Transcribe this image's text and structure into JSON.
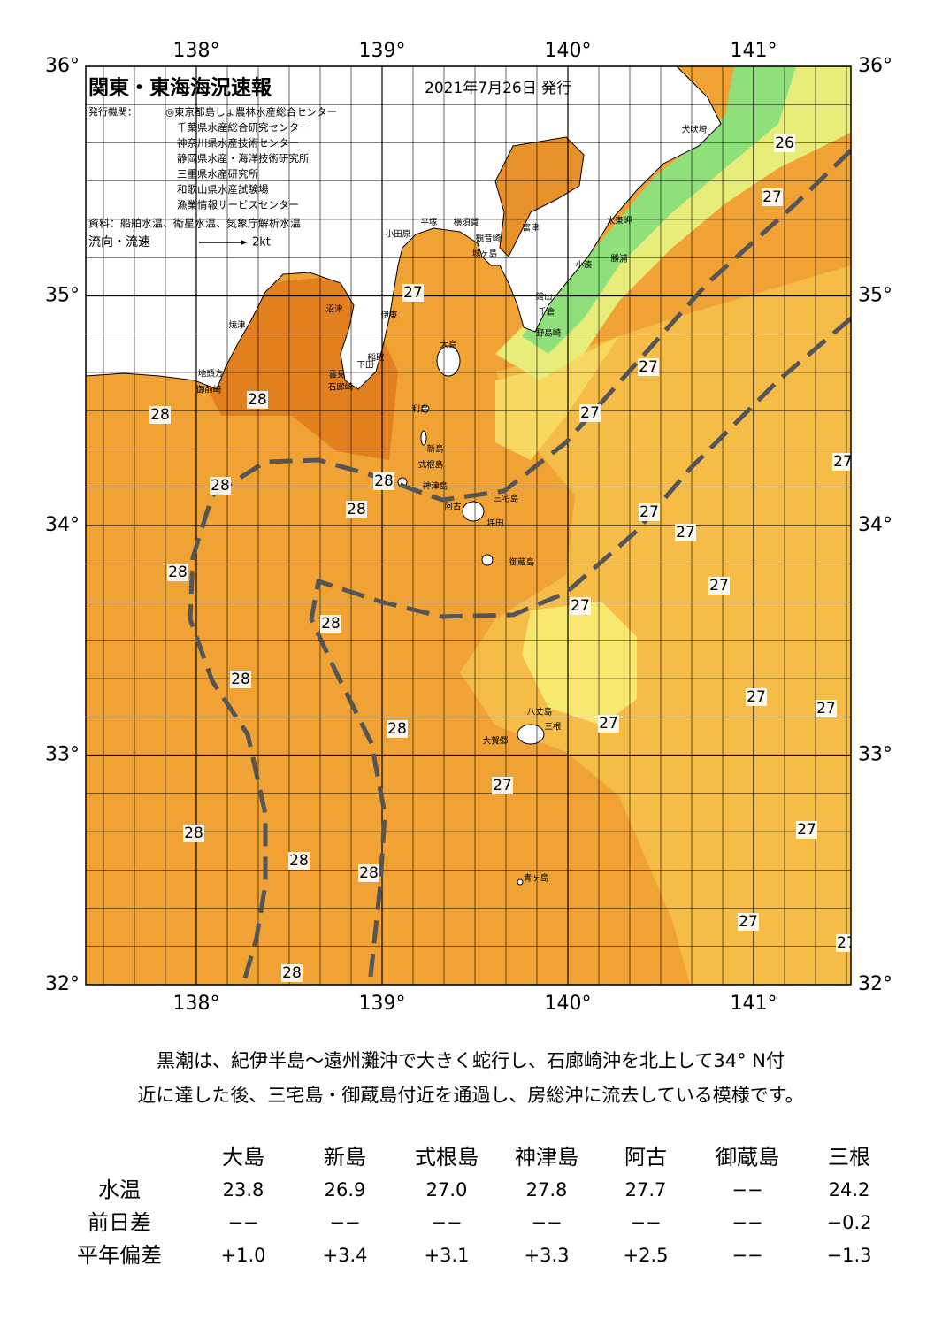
{
  "header": {
    "title": "関東・東海海況速報",
    "date": "2021年7月26日 発行",
    "issuer_label": "発行機関：",
    "issuers": [
      "◎東京都島しょ農林水産総合センター",
      "千葉県水産総合研究センター",
      "神奈川県水産技術センター",
      "静岡県水産・海洋技術研究所",
      "三重県水産研究所",
      "和歌山県水産試験場",
      "漁業情報サービスセンター"
    ],
    "source": "資料：船舶水温、衛星水温、気象庁解析水温",
    "legend_label": "流向・流速",
    "legend_speed": "2kt"
  },
  "axes": {
    "lon_ticks": [
      {
        "value": 138,
        "label": "138°"
      },
      {
        "value": 139,
        "label": "139°"
      },
      {
        "value": 140,
        "label": "140°"
      },
      {
        "value": 141,
        "label": "141°"
      }
    ],
    "lat_ticks": [
      {
        "value": 36,
        "label": "36°"
      },
      {
        "value": 35,
        "label": "35°"
      },
      {
        "value": 34,
        "label": "34°"
      },
      {
        "value": 33,
        "label": "33°"
      },
      {
        "value": 32,
        "label": "32°"
      }
    ]
  },
  "map": {
    "temperature_labels": [
      26,
      27,
      27,
      27,
      27,
      27,
      28,
      28,
      28,
      28,
      28,
      27,
      27,
      28,
      27,
      27,
      28,
      28,
      27,
      27,
      28,
      27,
      27,
      28,
      27,
      28,
      28,
      27,
      28,
      27
    ],
    "places": [
      "犬吠埼",
      "太東岬",
      "勝浦",
      "小湊",
      "館山",
      "千倉",
      "野島崎",
      "富津",
      "観音崎",
      "横須賀",
      "平塚",
      "小田原",
      "城ヶ島",
      "伊東",
      "稲取",
      "下田",
      "石廊崎",
      "雲見",
      "沼津",
      "焼津",
      "地頭方",
      "御前崎",
      "大島",
      "利島",
      "新島",
      "式根島",
      "神津島",
      "三宅島",
      "阿古",
      "坪田",
      "御蔵島",
      "八丈島",
      "三根",
      "大賀郷",
      "青ヶ島"
    ]
  },
  "summary": [
    "黒潮は、紀伊半島～遠州灘沖で大きく蛇行し、石廊崎沖を北上して34° N付",
    "近に達した後、三宅島・御蔵島付近を通過し、房総沖に流去している模様です。"
  ],
  "table": {
    "columns": [
      "大島",
      "新島",
      "式根島",
      "神津島",
      "阿古",
      "御蔵島",
      "三根"
    ],
    "rows": [
      {
        "label": "水温",
        "values": [
          "23.8",
          "26.9",
          "27.0",
          "27.8",
          "27.7",
          "−−",
          "24.2"
        ]
      },
      {
        "label": "前日差",
        "values": [
          "−−",
          "−−",
          "−−",
          "−−",
          "−−",
          "−−",
          "−0.2"
        ]
      },
      {
        "label": "平年偏差",
        "values": [
          "+1.0",
          "+3.4",
          "+3.1",
          "+3.3",
          "+2.5",
          "−−",
          "−1.3"
        ]
      }
    ]
  }
}
